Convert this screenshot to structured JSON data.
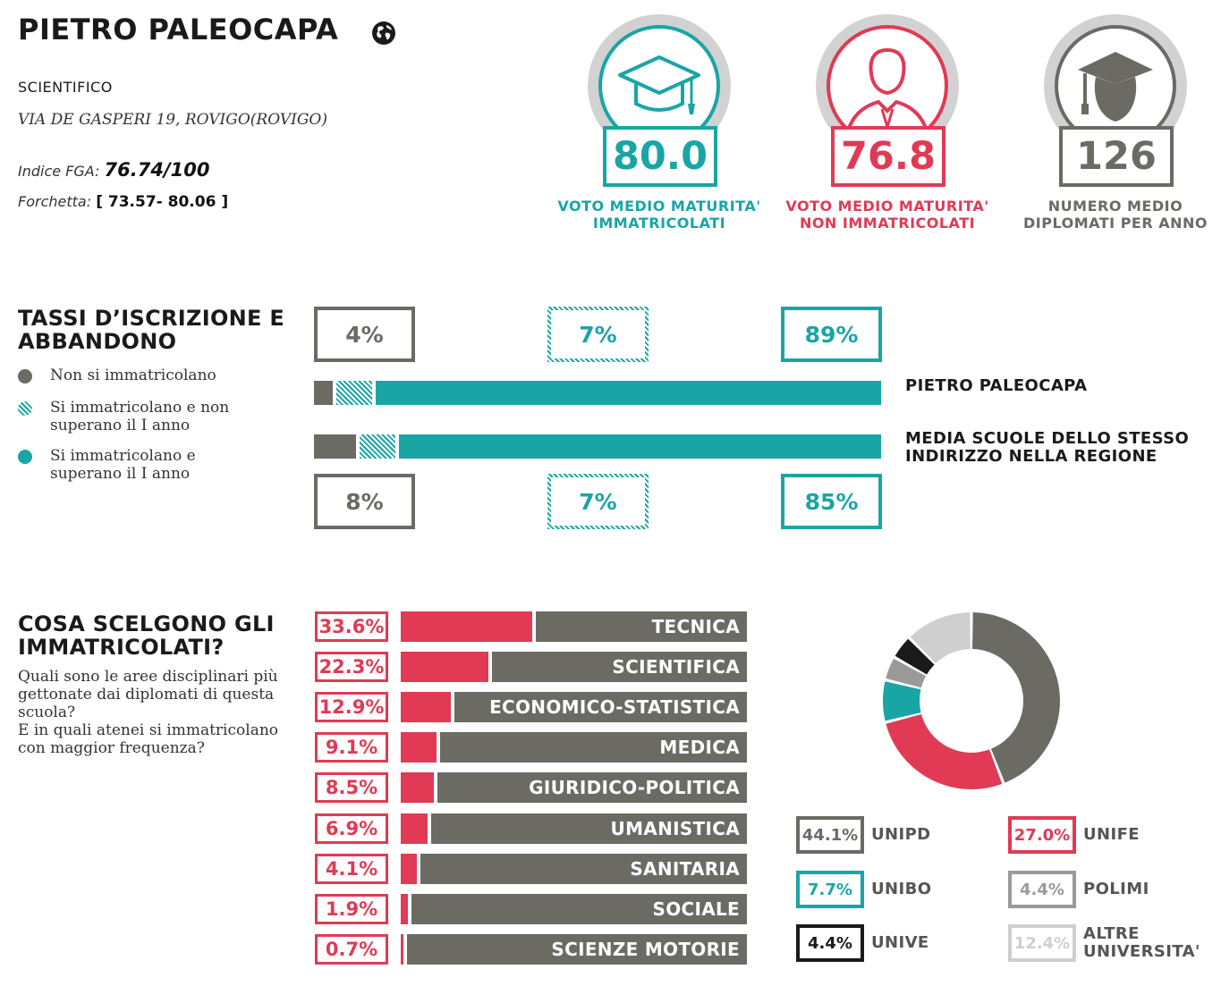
{
  "header": {
    "school_name": "PIETRO PALEOCAPA",
    "school_type": "SCIENTIFICO",
    "address": "VIA DE GASPERI 19, ROVIGO(ROVIGO)",
    "fga_label": "Indice FGA:",
    "fga_value": "76.74/100",
    "fork_label": "Forchetta:",
    "fork_value": "[ 73.57- 80.06 ]",
    "globe_icon": "globe-icon"
  },
  "kpis": [
    {
      "value": "80.0",
      "label_line1": "VOTO MEDIO MATURITA'",
      "label_line2": "IMMATRICOLATI",
      "color": "#1aa5a5",
      "icon": "graduation-cap-icon"
    },
    {
      "value": "76.8",
      "label_line1": "VOTO MEDIO MATURITA'",
      "label_line2": "NON IMMATRICOLATI",
      "color": "#e03a55",
      "icon": "person-icon"
    },
    {
      "value": "126",
      "label_line1": "NUMERO MEDIO",
      "label_line2": "DIPLOMATI PER ANNO",
      "color": "#6b6a63",
      "icon": "graduate-head-icon"
    }
  ],
  "enrollment": {
    "title_line1": "TASSI D’ISCRIZIONE E",
    "title_line2": "ABBANDONO",
    "legend": [
      {
        "label_line1": "Non si immatricolano",
        "label_line2": "",
        "style": "gray"
      },
      {
        "label_line1": "Si immatricolano e non",
        "label_line2": "superano il I anno",
        "style": "hatch"
      },
      {
        "label_line1": "Si immatricolano e",
        "label_line2": "superano il I anno",
        "style": "teal"
      }
    ],
    "rows": [
      {
        "name_line1": "PIETRO PALEOCAPA",
        "name_line2": "",
        "values": [
          4,
          7,
          89
        ],
        "labels": [
          "4%",
          "7%",
          "89%"
        ]
      },
      {
        "name_line1": "MEDIA SCUOLE DELLO STESSO",
        "name_line2": "INDIRIZZO NELLA REGIONE",
        "values": [
          8,
          7,
          85
        ],
        "labels": [
          "8%",
          "7%",
          "85%"
        ]
      }
    ]
  },
  "areas": {
    "title_line1": "COSA SCELGONO GLI",
    "title_line2": "IMMATRICOLATI?",
    "desc_lines": [
      "Quali sono le aree disciplinari più",
      "gettonate dai diplomati di questa",
      "scuola?",
      "E in quali atenei si immatricolano",
      "con maggior frequenza?"
    ]
  },
  "chart_data": [
    {
      "type": "bar",
      "categories": [
        "TECNICA",
        "SCIENTIFICA",
        "ECONOMICO-STATISTICA",
        "MEDICA",
        "GIURIDICO-POLITICA",
        "UMANISTICA",
        "SANITARIA",
        "SOCIALE",
        "SCIENZE MOTORIE"
      ],
      "values": [
        33.6,
        22.3,
        12.9,
        9.1,
        8.5,
        6.9,
        4.1,
        1.9,
        0.7
      ],
      "labels": [
        "33.6%",
        "22.3%",
        "12.9%",
        "9.1%",
        "8.5%",
        "6.9%",
        "4.1%",
        "1.9%",
        "0.7%"
      ],
      "xlim": [
        0,
        100
      ],
      "colors": {
        "value": "#e03a55",
        "rest": "#6b6a63"
      }
    },
    {
      "type": "pie",
      "slices": [
        {
          "name_line1": "UNIPD",
          "name_line2": "",
          "value": 44.1,
          "label": "44.1%",
          "color": "#6b6a63"
        },
        {
          "name_line1": "UNIFE",
          "name_line2": "",
          "value": 27.0,
          "label": "27.0%",
          "color": "#e03a55"
        },
        {
          "name_line1": "UNIBO",
          "name_line2": "",
          "value": 7.7,
          "label": "7.7%",
          "color": "#1aa5a5"
        },
        {
          "name_line1": "POLIMI",
          "name_line2": "",
          "value": 4.4,
          "label": "4.4%",
          "color": "#9a9a9a"
        },
        {
          "name_line1": "UNIVE",
          "name_line2": "",
          "value": 4.4,
          "label": "4.4%",
          "color": "#1a1a1a"
        },
        {
          "name_line1": "ALTRE",
          "name_line2": "UNIVERSITA'",
          "value": 12.4,
          "label": "12.4%",
          "color": "#cfcfcf"
        }
      ]
    }
  ]
}
